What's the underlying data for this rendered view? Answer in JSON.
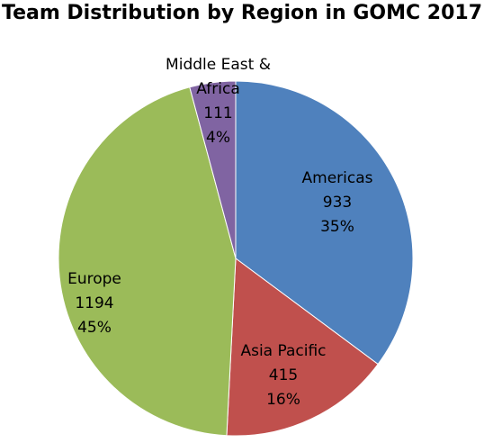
{
  "chart_data": {
    "type": "pie",
    "title": "Team Distribution by Region in GOMC 2017",
    "categories": [
      "Americas",
      "Asia Pacific",
      "Europe",
      "Middle East & Africa"
    ],
    "values": [
      933,
      415,
      1194,
      111
    ],
    "percentages": [
      {
        "value": 35,
        "label": "35%"
      },
      {
        "value": 16,
        "label": "16%"
      },
      {
        "value": 45,
        "label": "45%"
      },
      {
        "value": 4,
        "label": "4%"
      }
    ],
    "colors": [
      "#4f81bd",
      "#c0504d",
      "#9bbb59",
      "#8064a2"
    ]
  }
}
